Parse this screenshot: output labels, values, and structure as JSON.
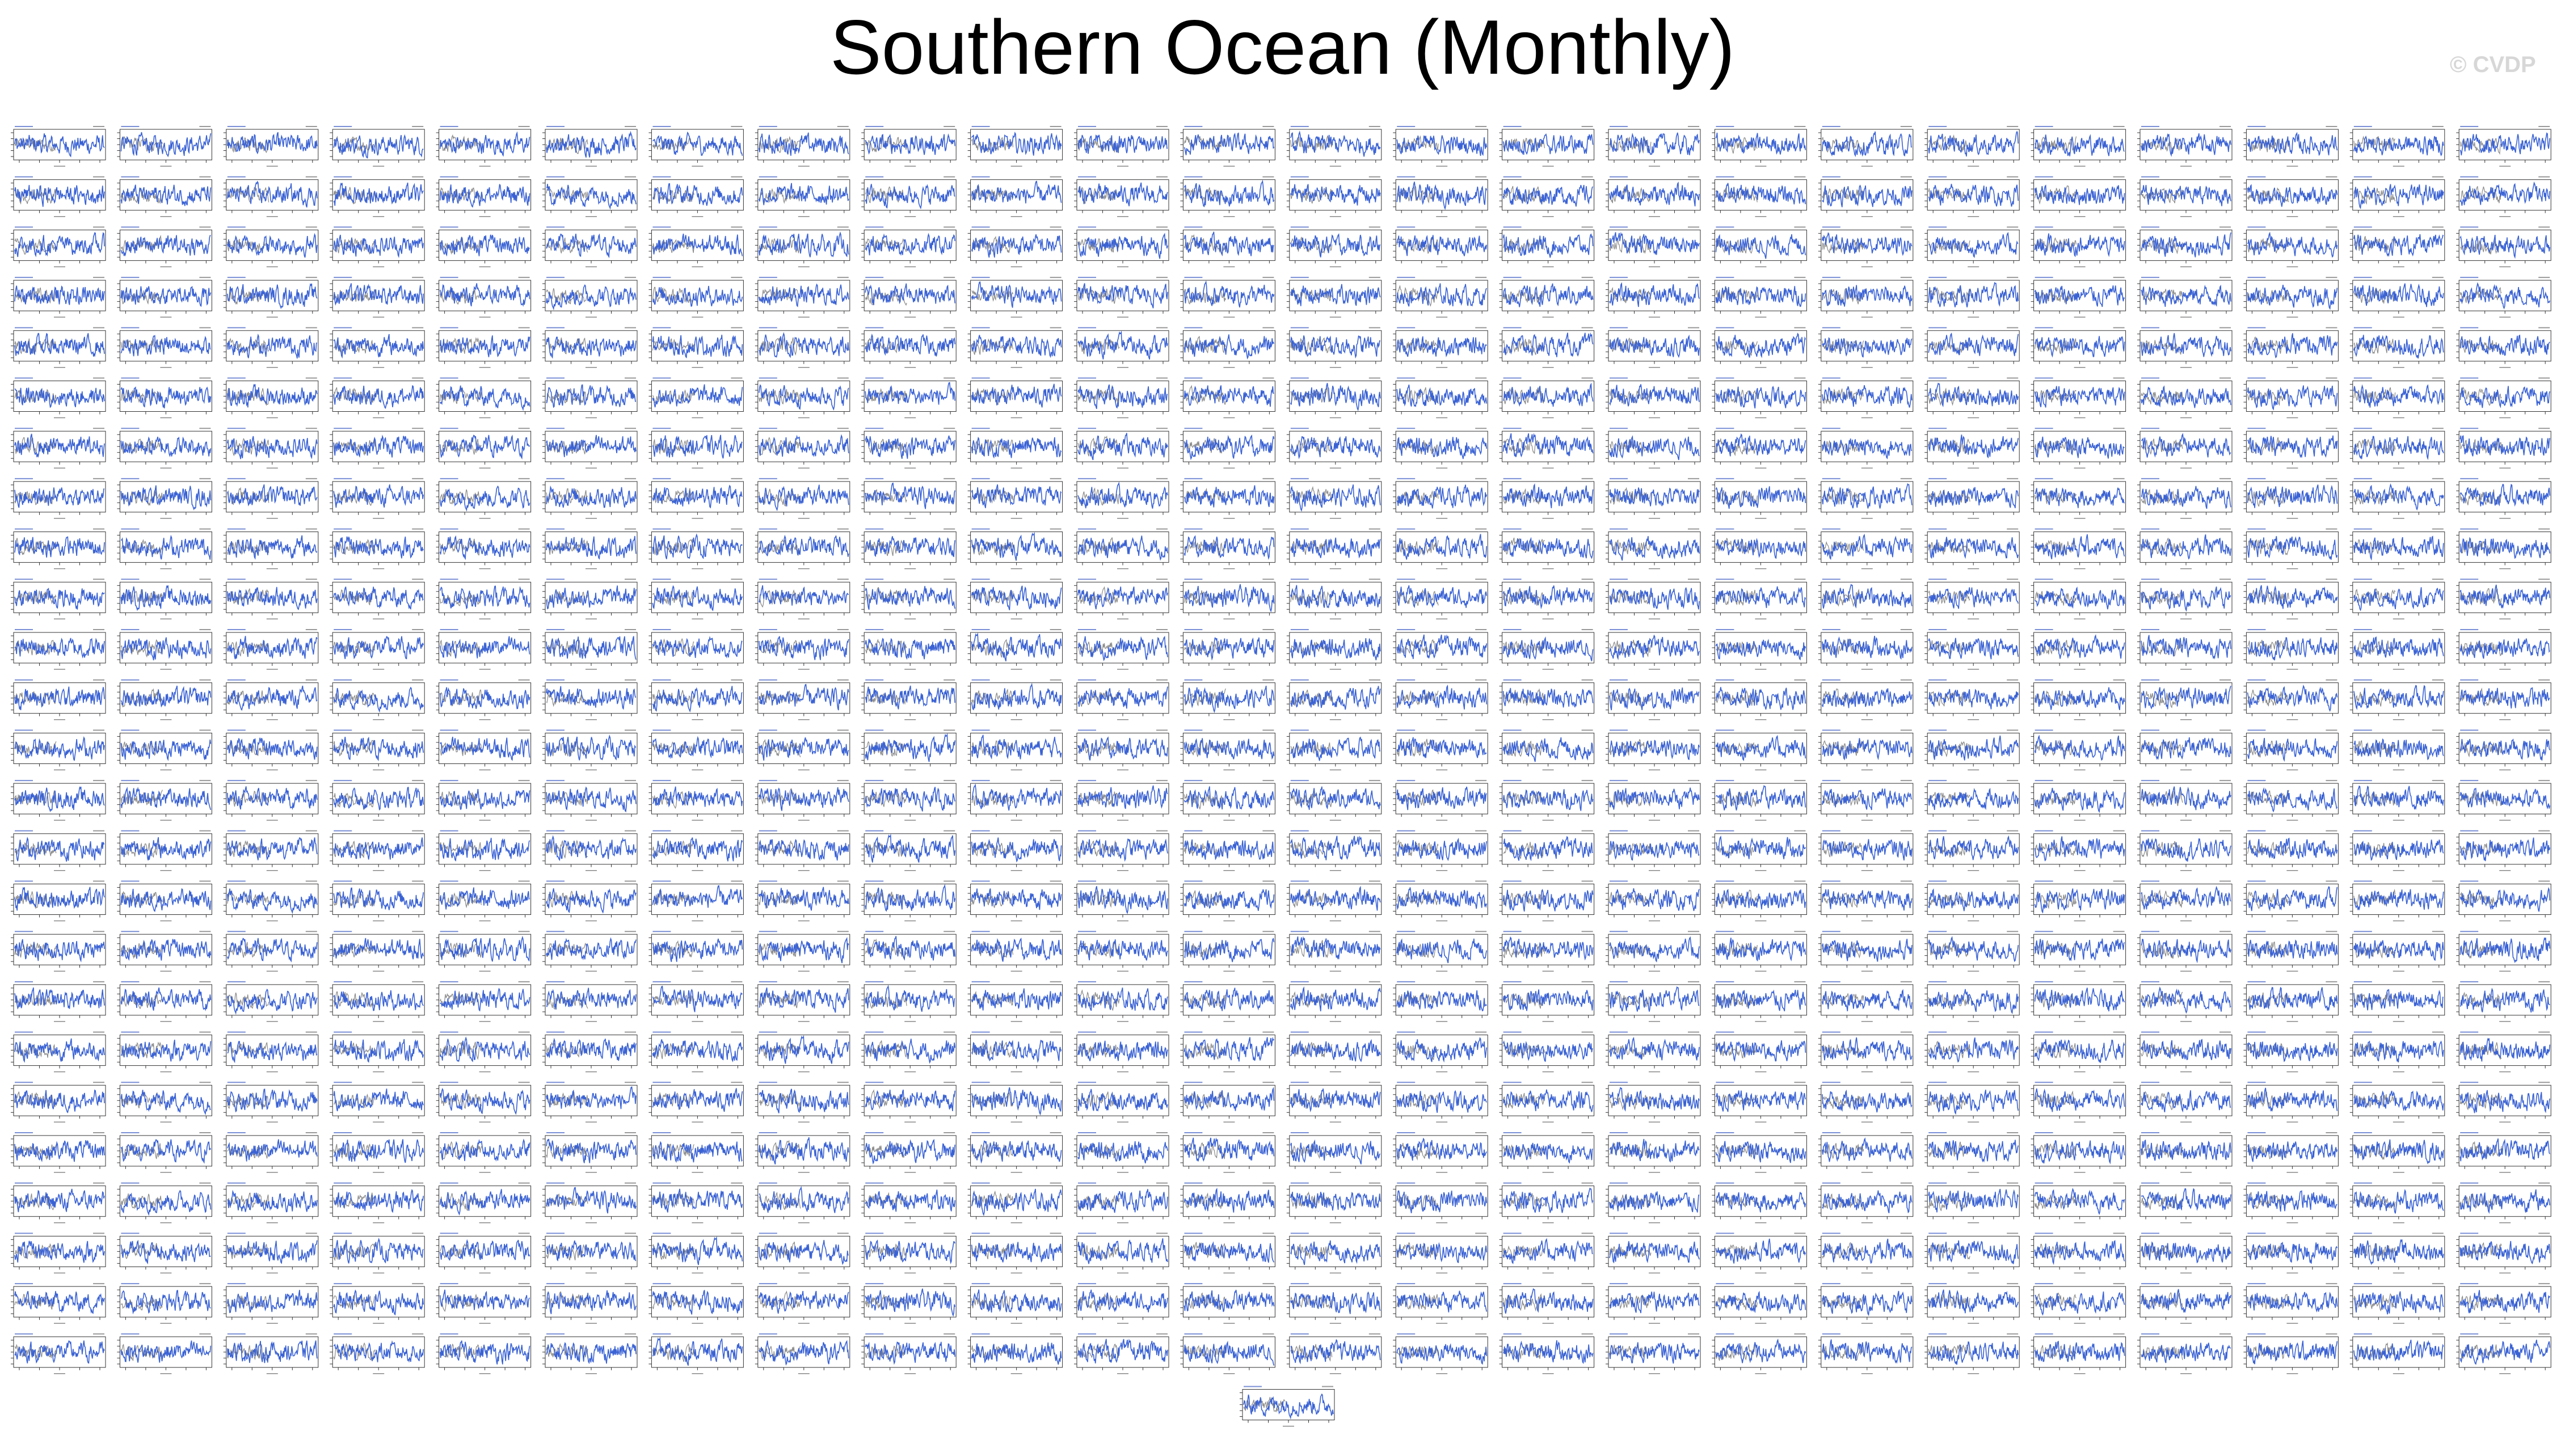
{
  "title": "Southern Ocean (Monthly)",
  "watermark": "© CVDP",
  "colors": {
    "title": "#000000",
    "model_line": "#3a62d4",
    "observed_line": "#8a8a8a",
    "panel_frame": "#333333",
    "watermark": "#d7d7d7"
  },
  "chart_data": {
    "type": "line",
    "layout": "small-multiples",
    "grid_columns": 24,
    "grid_rows": 25,
    "extra_panels": 1,
    "panel_count": 601,
    "series": [
      {
        "color": "#3a62d4"
      },
      {
        "color": "#8a8a8a"
      }
    ],
    "grid": false
  }
}
